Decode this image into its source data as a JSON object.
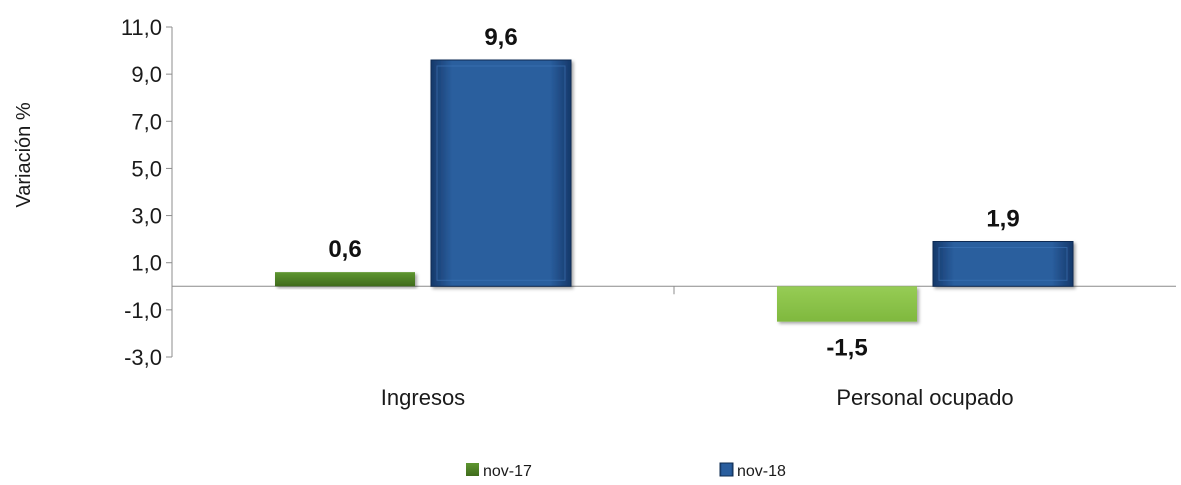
{
  "chart_data": {
    "type": "bar",
    "title": "",
    "xlabel": "",
    "ylabel": "Variación %",
    "ylim": [
      -3.0,
      11.0
    ],
    "yticks": [
      "11,0",
      "9,0",
      "7,0",
      "5,0",
      "3,0",
      "1,0",
      "-1,0",
      "-3,0"
    ],
    "ytick_values": [
      11,
      9,
      7,
      5,
      3,
      1,
      -1,
      -3
    ],
    "categories": [
      "Ingresos",
      "Personal ocupado"
    ],
    "series": [
      {
        "name": "nov-17",
        "values": [
          0.6,
          -1.5
        ],
        "labels": [
          "0,6",
          "-1,5"
        ],
        "colors": [
          "#4f7f25",
          "#8cc44a"
        ]
      },
      {
        "name": "nov-18",
        "values": [
          9.6,
          1.9
        ],
        "labels": [
          "9,6",
          "1,9"
        ],
        "colors": [
          "#1f4e8a",
          "#1f4e8a"
        ]
      }
    ],
    "legend_position": "bottom",
    "grid": false
  }
}
